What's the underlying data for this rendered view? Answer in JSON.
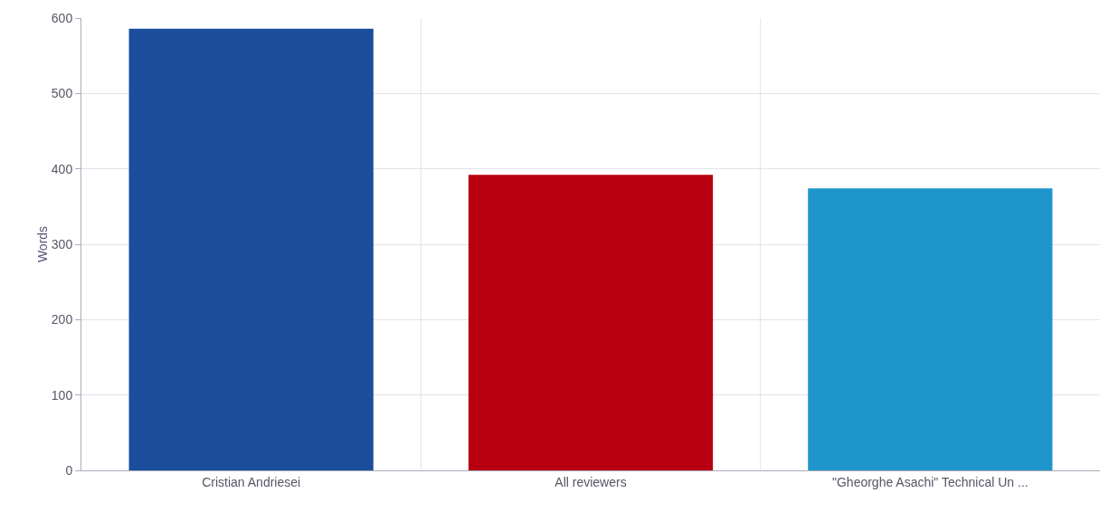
{
  "chart_data": {
    "type": "bar",
    "ylabel": "Words",
    "categories": [
      "Cristian Andriesei",
      "All reviewers",
      "\"Gheorghe Asachi\" Technical Un ..."
    ],
    "values": [
      586,
      392,
      374
    ],
    "colors": [
      "#1a4e9c",
      "#b80010",
      "#1e96cc"
    ],
    "ylim": [
      0,
      600
    ],
    "yticks": [
      0,
      100,
      200,
      300,
      400,
      500,
      600
    ],
    "grid": true
  }
}
